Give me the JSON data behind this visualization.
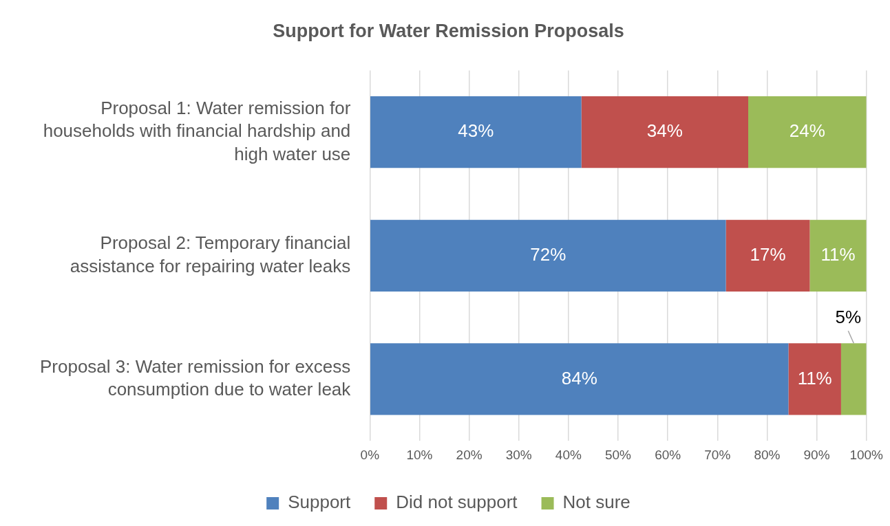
{
  "chart_data": {
    "type": "bar",
    "orientation": "horizontal",
    "stacked": true,
    "title": "Support for Water Remission Proposals",
    "categories": [
      "Proposal 1: Water remission for households with financial hardship and high water use",
      "Proposal 2: Temporary financial assistance for repairing water leaks",
      "Proposal 3: Water remission for excess consumption due to water leak"
    ],
    "series": [
      {
        "name": "Support",
        "color": "#4f81bd",
        "values": [
          42.6,
          71.7,
          84.3
        ],
        "value_labels": [
          "43%",
          "72%",
          "84%"
        ]
      },
      {
        "name": "Did not support",
        "color": "#c0504d",
        "values": [
          33.6,
          16.9,
          10.6
        ],
        "value_labels": [
          "34%",
          "17%",
          "11%"
        ]
      },
      {
        "name": "Not sure",
        "color": "#9bbb59",
        "values": [
          23.8,
          11.4,
          5.1
        ],
        "value_labels": [
          "24%",
          "11%",
          "5%"
        ]
      }
    ],
    "xlim": [
      0,
      100
    ],
    "xticks": [
      {
        "value": 0,
        "label": "0%"
      },
      {
        "value": 10,
        "label": "10%"
      },
      {
        "value": 20,
        "label": "20%"
      },
      {
        "value": 30,
        "label": "30%"
      },
      {
        "value": 40,
        "label": "40%"
      },
      {
        "value": 50,
        "label": "50%"
      },
      {
        "value": 60,
        "label": "60%"
      },
      {
        "value": 70,
        "label": "70%"
      },
      {
        "value": 80,
        "label": "80%"
      },
      {
        "value": 90,
        "label": "90%"
      },
      {
        "value": 100,
        "label": "100%"
      }
    ],
    "grid": "x",
    "legend": "bottom"
  }
}
